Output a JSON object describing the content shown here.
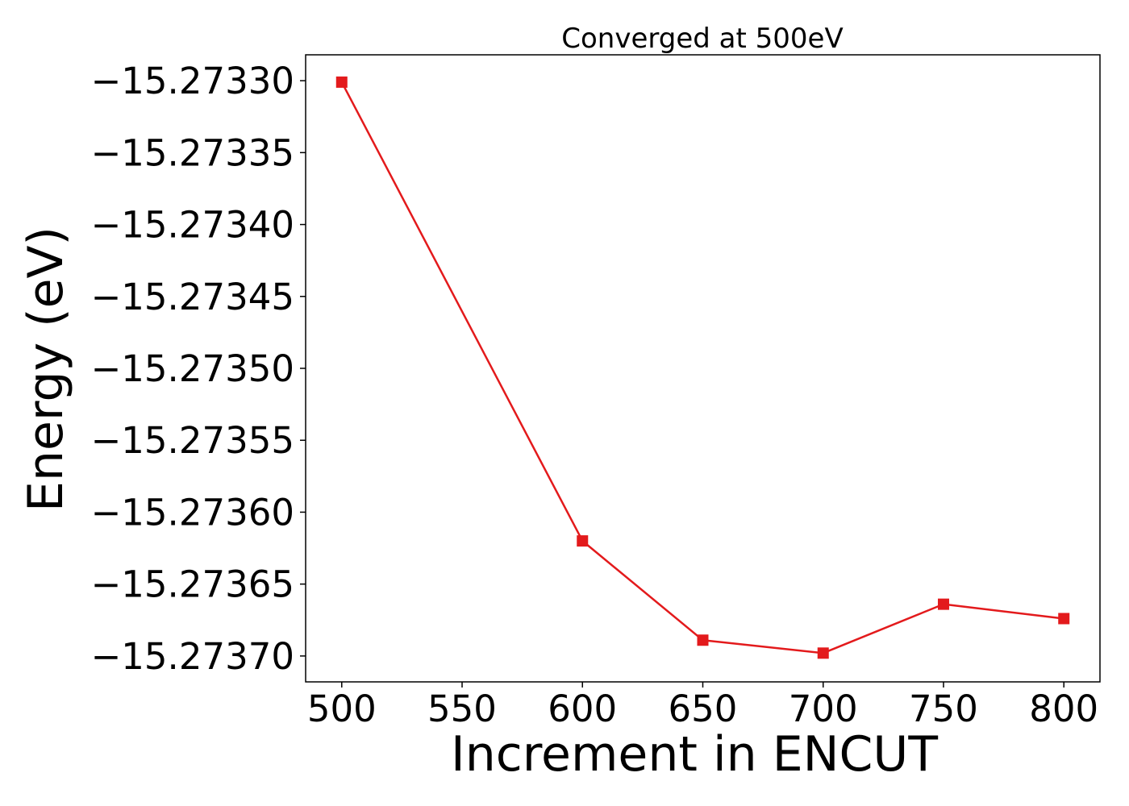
{
  "chart_data": {
    "type": "line",
    "title": "Converged at 500eV",
    "xlabel": "Increment in ENCUT",
    "ylabel": "Energy (eV)",
    "xlim": [
      485,
      815
    ],
    "ylim": [
      -15.273718,
      -15.273282
    ],
    "xticks": [
      500,
      550,
      600,
      650,
      700,
      750,
      800
    ],
    "xtick_labels": [
      "500",
      "550",
      "600",
      "650",
      "700",
      "750",
      "800"
    ],
    "yticks": [
      -15.2733,
      -15.27335,
      -15.2734,
      -15.27345,
      -15.2735,
      -15.27355,
      -15.2736,
      -15.27365,
      -15.2737
    ],
    "ytick_labels": [
      "−15.27330",
      "−15.27335",
      "−15.27340",
      "−15.27345",
      "−15.27350",
      "−15.27355",
      "−15.27360",
      "−15.27365",
      "−15.27370"
    ],
    "grid": false,
    "legend": null,
    "series": [
      {
        "color": "#e31a1c",
        "marker": "square",
        "x": [
          500,
          600,
          650,
          700,
          750,
          800
        ],
        "y": [
          -15.273301,
          -15.27362,
          -15.273689,
          -15.273698,
          -15.273664,
          -15.273674
        ]
      }
    ]
  }
}
